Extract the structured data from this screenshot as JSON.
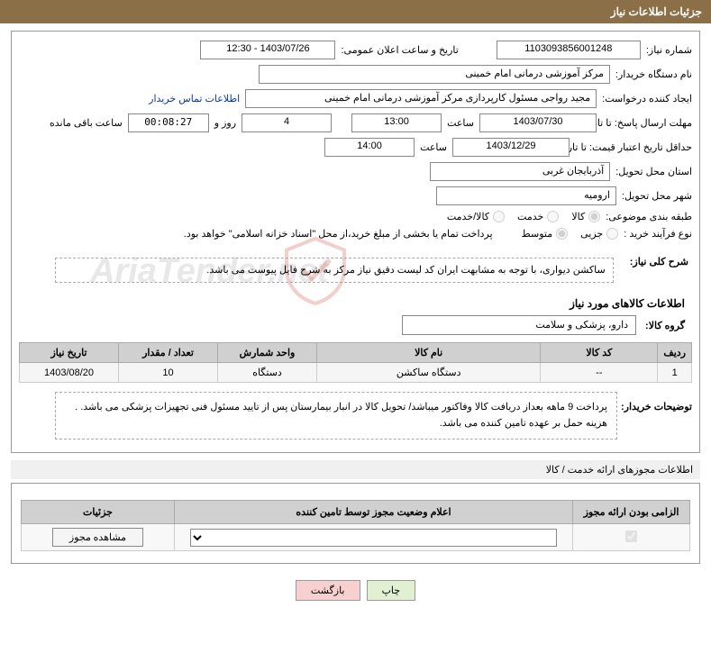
{
  "page_header": "جزئیات اطلاعات نیاز",
  "info": {
    "need_number_label": "شماره نیاز:",
    "need_number": "1103093856001248",
    "announce_datetime_label": "تاریخ و ساعت اعلان عمومی:",
    "announce_datetime": "1403/07/26 - 12:30",
    "buyer_org_label": "نام دستگاه خریدار:",
    "buyer_org": "مرکز آموزشی درمانی امام خمینی",
    "requester_label": "ایجاد کننده درخواست:",
    "requester": "مجید  رواجی مسئول کارپردازی مرکز آموزشی درمانی امام خمینی",
    "contact_link": "اطلاعات تماس خریدار",
    "response_deadline_label": "مهلت ارسال پاسخ: تا تاریخ:",
    "response_deadline_date": "1403/07/30",
    "time_word": "ساعت",
    "response_deadline_time": "13:00",
    "days_count": "4",
    "days_and": "روز و",
    "time_left": "00:08:27",
    "time_left_label": "ساعت باقی مانده",
    "price_validity_label": "حداقل تاریخ اعتبار قیمت: تا تاریخ:",
    "price_validity_date": "1403/12/29",
    "price_validity_time": "14:00",
    "delivery_province_label": "استان محل تحویل:",
    "delivery_province": "آذربایجان غربی",
    "delivery_city_label": "شهر محل تحویل:",
    "delivery_city": "ارومیه",
    "category_label": "طبقه بندی موضوعی:",
    "category_options": {
      "goods": "کالا",
      "service": "خدمت",
      "goods_service": "کالا/خدمت"
    },
    "category_selected": "goods",
    "purchase_type_label": "نوع فرآیند خرید :",
    "purchase_options": {
      "partial": "جزیی",
      "medium": "متوسط"
    },
    "purchase_selected": "medium",
    "treasury_note": "پرداخت تمام یا بخشی از مبلغ خرید،از محل \"اسناد خزانه اسلامی\" خواهد بود.",
    "overview_label": "شرح کلی نیاز:",
    "overview_text": "ساکشن دیواری، با توجه به مشابهت ایران کد لیست دقیق نیاز مرکز به شرح فایل پیوست می باشد.",
    "items_section_title": "اطلاعات کالاهای مورد نیاز",
    "goods_group_label": "گروه کالا:",
    "goods_group": "دارو، پزشکی و سلامت",
    "buyer_notes_label": "توضیحات خریدار:",
    "buyer_notes": "پرداخت 9 ماهه بعداز دریافت کالا وفاکتور میباشد/ تحویل کالا در انبار بیمارستان پس از تایید مسئول فنی تجهیزات پزشکی می باشد. . هزینه حمل بر عهده تامین کننده می باشد."
  },
  "items_table": {
    "headers": {
      "row": "ردیف",
      "code": "کد کالا",
      "name": "نام کالا",
      "unit": "واحد شمارش",
      "qty": "تعداد / مقدار",
      "date": "تاریخ نیاز"
    },
    "rows": [
      {
        "row": "1",
        "code": "--",
        "name": "دستگاه ساکشن",
        "unit": "دستگاه",
        "qty": "10",
        "date": "1403/08/20"
      }
    ],
    "col_widths": {
      "row": "36px",
      "code": "130px",
      "name": "auto",
      "unit": "110px",
      "qty": "110px",
      "date": "110px"
    }
  },
  "permits": {
    "section_title": "اطلاعات مجوزهای ارائه خدمت / کالا",
    "headers": {
      "mandatory": "الزامی بودن ارائه مجوز",
      "status": "اعلام وضعیت مجوز توسط تامین کننده",
      "details": "جزئیات"
    },
    "view_button": "مشاهده مجوز",
    "col_widths": {
      "mandatory": "130px",
      "status": "auto",
      "details": "170px"
    }
  },
  "footer": {
    "print": "چاپ",
    "back": "بازگشت"
  },
  "watermark": "AriaTender.net",
  "colors": {
    "header_bg": "#8b6f47",
    "table_header_bg": "#d0d0d0",
    "border": "#999999",
    "link": "#0033cc"
  }
}
